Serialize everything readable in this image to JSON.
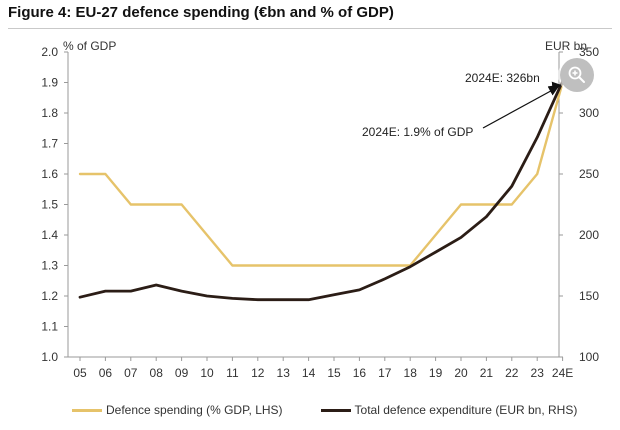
{
  "header": {
    "title": "Figure 4: EU-27 defence spending (€bn and % of GDP)"
  },
  "chart_data": {
    "type": "line",
    "title": "Figure 4: EU-27 defence spending (€bn and % of GDP)",
    "categories": [
      "05",
      "06",
      "07",
      "08",
      "09",
      "10",
      "11",
      "12",
      "13",
      "14",
      "15",
      "16",
      "17",
      "18",
      "19",
      "20",
      "21",
      "22",
      "23",
      "24E"
    ],
    "y_left": {
      "label": "% of GDP",
      "range": [
        1.0,
        2.0
      ],
      "ticks": [
        "1.0",
        "1.1",
        "1.2",
        "1.3",
        "1.4",
        "1.5",
        "1.6",
        "1.7",
        "1.8",
        "1.9",
        "2.0"
      ]
    },
    "y_right": {
      "label": "EUR bn",
      "range": [
        100,
        350
      ],
      "ticks": [
        "100",
        "150",
        "200",
        "250",
        "300",
        "350"
      ]
    },
    "series": [
      {
        "name": "Defence spending (% GDP, LHS)",
        "axis": "left",
        "color": "#e6c36a",
        "values": [
          1.6,
          1.6,
          1.5,
          1.5,
          1.5,
          1.4,
          1.3,
          1.3,
          1.3,
          1.3,
          1.3,
          1.3,
          1.3,
          1.3,
          1.4,
          1.5,
          1.5,
          1.5,
          1.6,
          1.9
        ]
      },
      {
        "name": "Total defence expenditure (EUR bn, RHS)",
        "axis": "right",
        "color": "#2b1d16",
        "values": [
          149,
          154,
          154,
          159,
          154,
          150,
          148,
          147,
          147,
          147,
          151,
          155,
          164,
          174,
          186,
          198,
          215,
          240,
          280,
          326
        ]
      }
    ],
    "annotations": [
      {
        "text": "2024E: 326bn",
        "category": "24E",
        "series": "Total defence expenditure (EUR bn, RHS)"
      },
      {
        "text": "2024E: 1.9% of GDP",
        "category": "24E",
        "series": "Defence spending (% GDP, LHS)"
      }
    ],
    "legend_position": "bottom",
    "grid": false
  },
  "zoom_button": {
    "icon": "zoom-in-icon"
  }
}
